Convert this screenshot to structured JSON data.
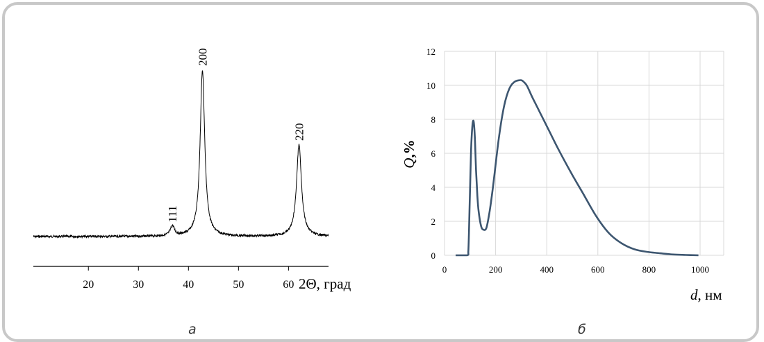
{
  "figure": {
    "panel_a_label": "а",
    "panel_b_label": "б"
  },
  "chart_data": [
    {
      "type": "line",
      "xlabel": "2Θ, град",
      "ylabel": "",
      "xlim": [
        9,
        68
      ],
      "xticks": [
        20,
        30,
        40,
        50,
        60
      ],
      "y_axis_shown": false,
      "series": [
        {
          "peaks": [
            {
              "x": 36.8,
              "height": 0.06,
              "label": "111"
            },
            {
              "x": 42.8,
              "height": 1.0,
              "label": "200"
            },
            {
              "x": 62.1,
              "height": 0.55,
              "label": "220"
            }
          ]
        }
      ],
      "grid": false
    },
    {
      "type": "line",
      "xlabel_var": "d",
      "xlabel_unit": ", нм",
      "ylabel_var": "Q",
      "ylabel_unit": ",%",
      "xlim": [
        0,
        1000
      ],
      "ylim": [
        0,
        12
      ],
      "xticks": [
        0,
        200,
        400,
        600,
        800,
        1000
      ],
      "yticks": [
        0,
        2,
        4,
        6,
        8,
        10,
        12
      ],
      "grid": true,
      "line_color": "#3d5670",
      "series": [
        {
          "x": [
            0,
            45,
            50,
            55,
            60,
            65,
            70,
            75,
            80,
            85,
            90,
            100,
            110,
            120,
            130,
            140,
            150,
            170,
            190,
            210,
            230,
            250,
            260,
            270,
            280,
            300,
            330,
            360,
            400,
            450,
            500,
            550,
            600,
            650,
            700,
            750,
            800,
            850,
            900,
            950
          ],
          "y": [
            0,
            0,
            0.3,
            3.0,
            6.0,
            7.5,
            7.9,
            7.0,
            5.0,
            3.5,
            2.6,
            1.7,
            1.5,
            1.6,
            2.3,
            3.3,
            4.5,
            7.0,
            8.8,
            9.8,
            10.2,
            10.3,
            10.28,
            10.15,
            9.95,
            9.3,
            8.4,
            7.5,
            6.3,
            4.9,
            3.6,
            2.3,
            1.3,
            0.7,
            0.35,
            0.2,
            0.12,
            0.05,
            0.02,
            0.0
          ]
        }
      ]
    }
  ]
}
